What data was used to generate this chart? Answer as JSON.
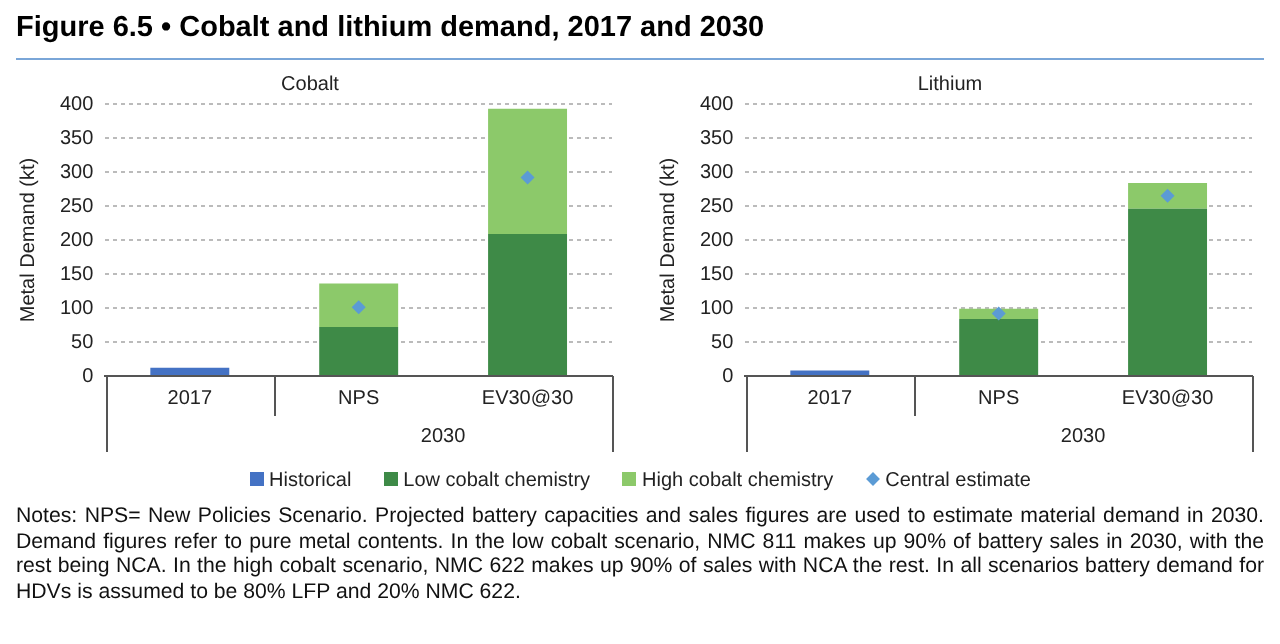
{
  "chart_data": [
    {
      "type": "bar",
      "title": "Cobalt",
      "ylabel": "Metal Demand (kt)",
      "xlabel": "2030",
      "categories": [
        "2017",
        "NPS",
        "EV30@30"
      ],
      "stacked": true,
      "ylim": [
        0,
        400
      ],
      "yticks": [
        0,
        50,
        100,
        150,
        200,
        250,
        300,
        350,
        400
      ],
      "grid": "y",
      "legend": "bottom",
      "annotations": [
        "Figure 6.5 • Cobalt and lithium demand, 2017 and 2030"
      ],
      "series": [
        {
          "name": "Historical",
          "color": "#4472c4",
          "values": [
            12,
            null,
            null
          ]
        },
        {
          "name": "Low cobalt chemistry",
          "color": "#3e8a47",
          "values": [
            null,
            72,
            209
          ]
        },
        {
          "name": "High cobalt chemistry",
          "color": "#8cc96a",
          "values": [
            null,
            64,
            184
          ]
        },
        {
          "name": "Central estimate",
          "type": "scatter",
          "marker": "diamond",
          "color": "#5b9bd5",
          "x": [
            "NPS",
            "EV30@30"
          ],
          "values": [
            101,
            292
          ]
        }
      ]
    },
    {
      "type": "bar",
      "title": "Lithium",
      "ylabel": "Metal Demand (kt)",
      "xlabel": "2030",
      "categories": [
        "2017",
        "NPS",
        "EV30@30"
      ],
      "stacked": true,
      "ylim": [
        0,
        400
      ],
      "yticks": [
        0,
        50,
        100,
        150,
        200,
        250,
        300,
        350,
        400
      ],
      "grid": "y",
      "annotations": [
        "Notes: NPS= New Policies Scenario. Projected battery capacities and sales figures are used to estimate material demand in 2030. Demand figures refer to pure metal contents. In the low cobalt scenario, NMC 811 makes up 90% of battery sales in 2030, with the rest being NCA. In the high cobalt scenario, NMC 622 makes up 90% of sales with NCA the rest. In all scenarios battery demand for HDVs is assumed to be 80% LFP and 20% NMC 622."
      ],
      "series": [
        {
          "color": "#4472c4",
          "values": [
            8,
            null,
            null
          ]
        },
        {
          "color": "#3e8a47",
          "values": [
            null,
            84,
            246
          ]
        },
        {
          "color": "#8cc96a",
          "values": [
            null,
            15,
            38
          ]
        },
        {
          "type": "scatter",
          "marker": "diamond",
          "color": "#5b9bd5",
          "x": [
            "NPS",
            "EV30@30"
          ],
          "values": [
            92,
            265
          ]
        }
      ]
    }
  ]
}
